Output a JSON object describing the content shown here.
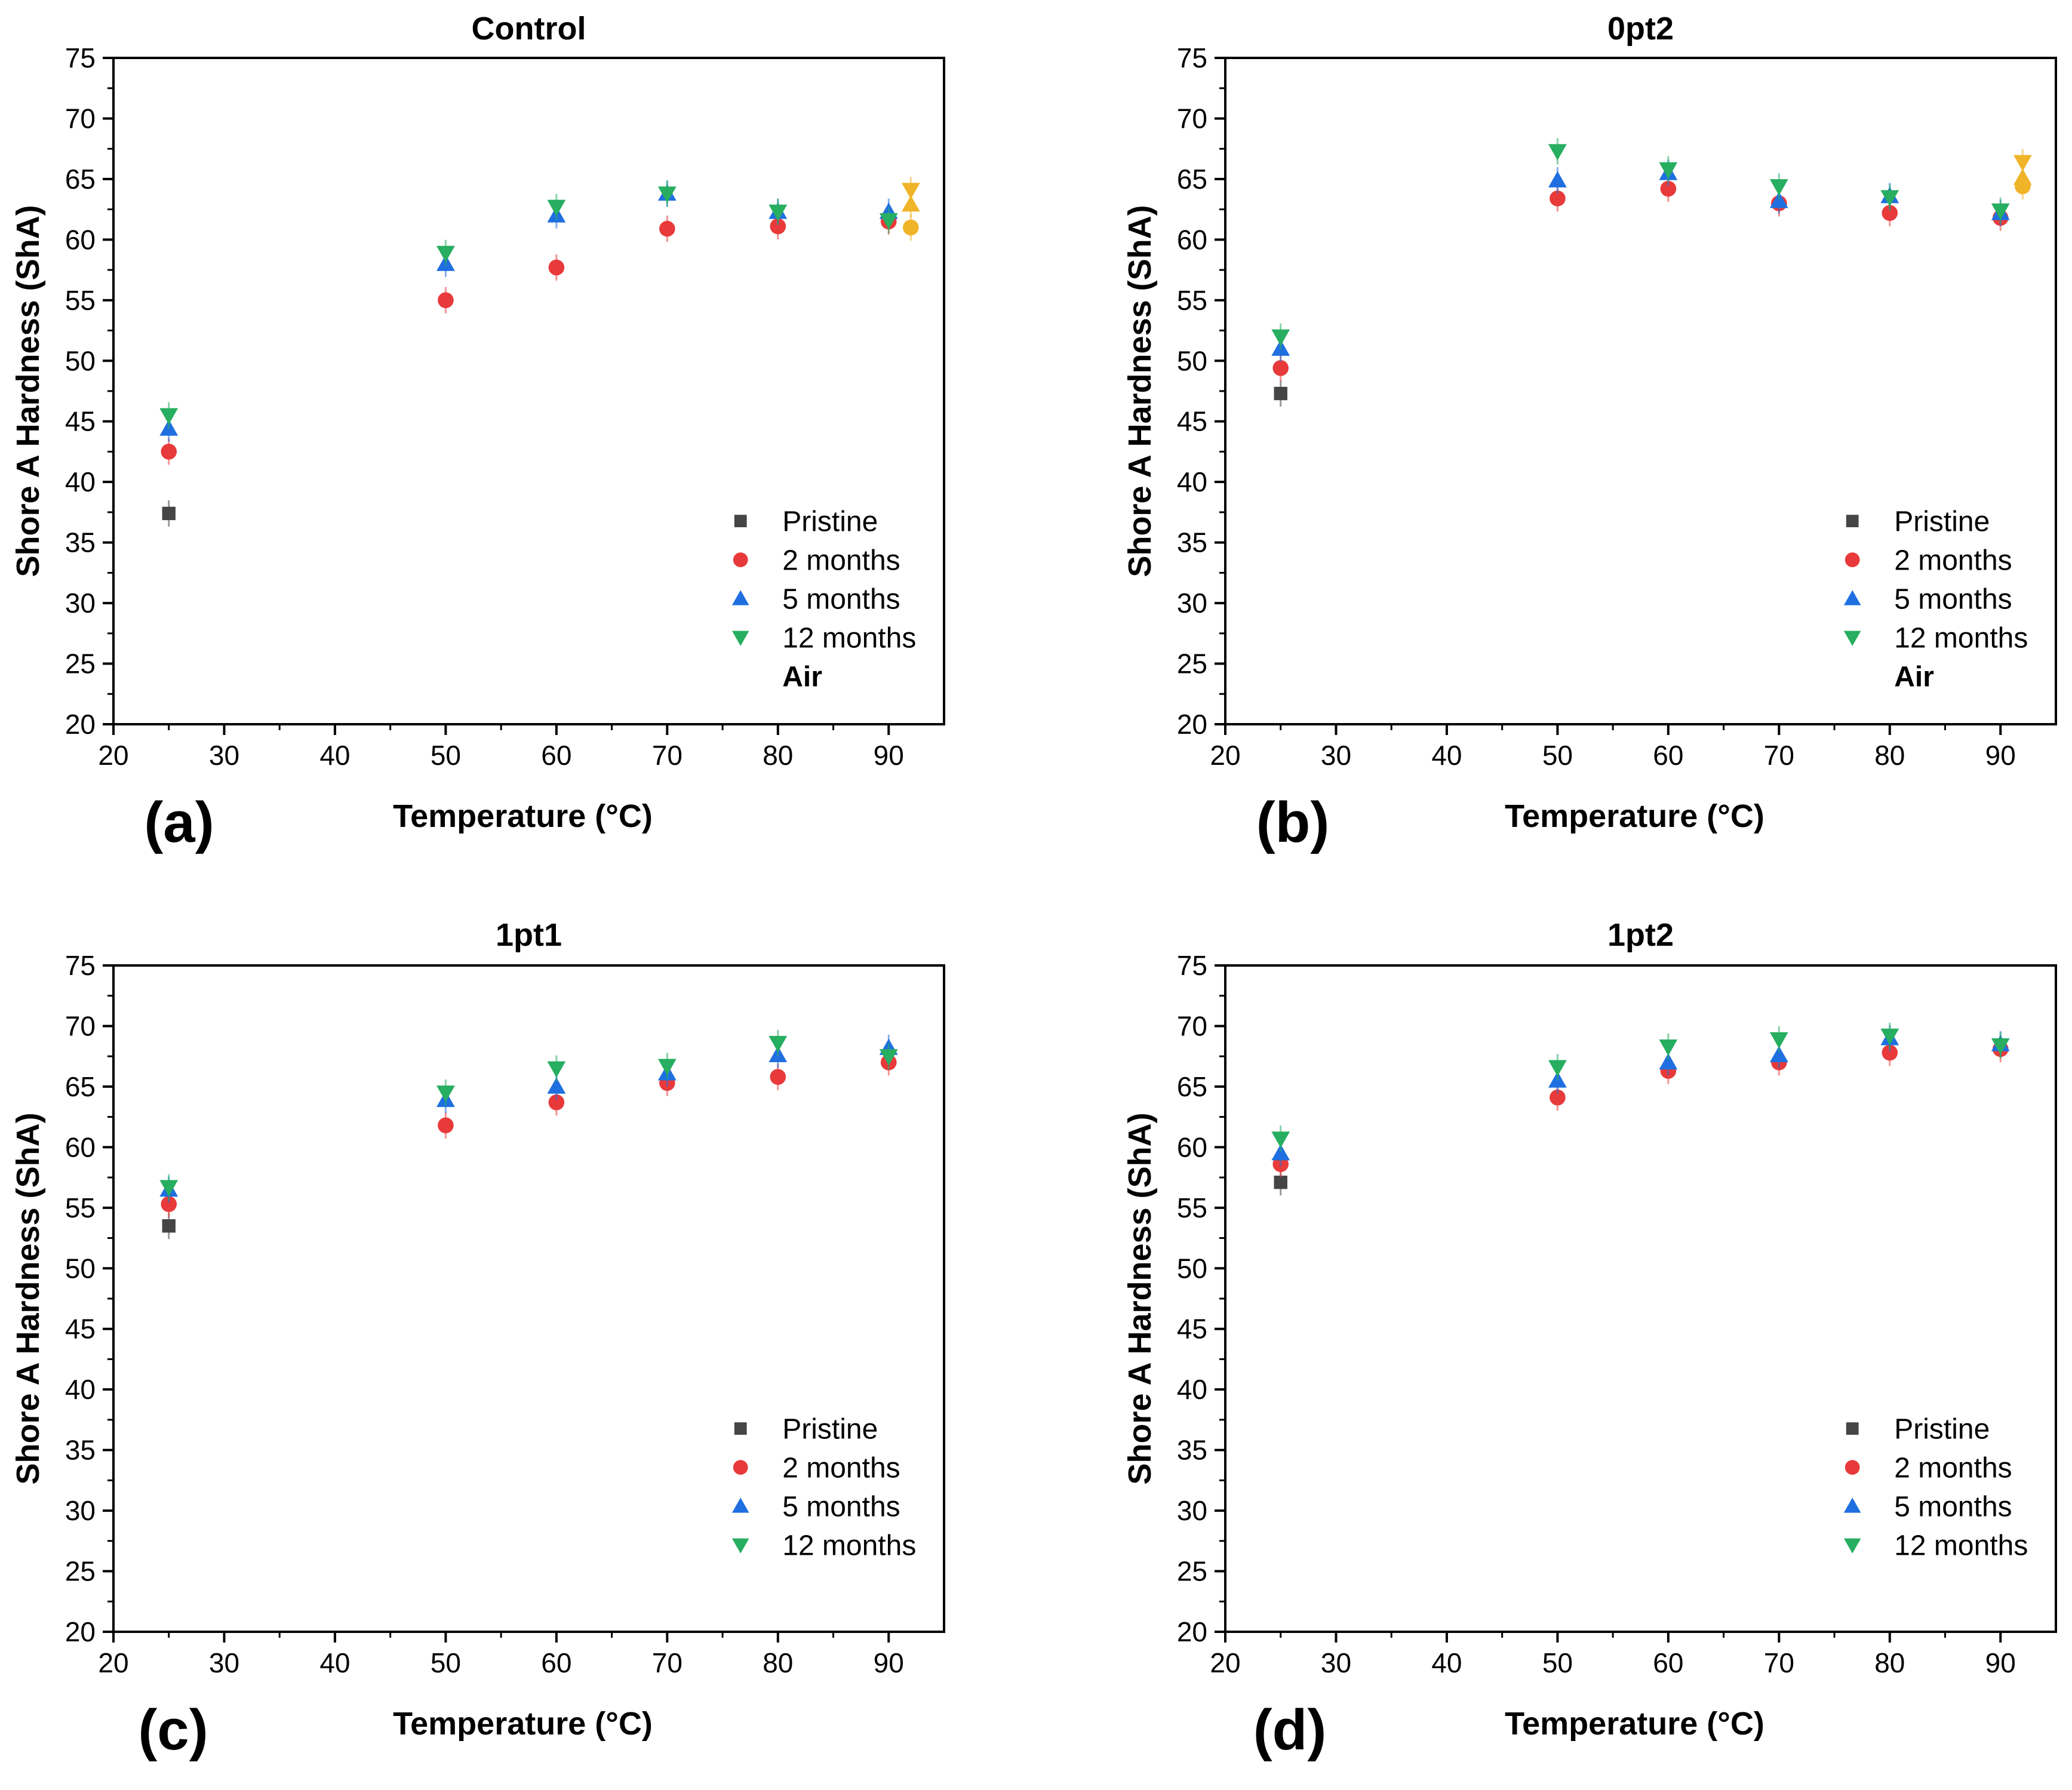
{
  "colors": {
    "Pristine": "#454545",
    "2 months": "#e83a3a",
    "5 months": "#1f6fe0",
    "12 months": "#27ae60",
    "Air": "#f0b429"
  },
  "chart_data": [
    {
      "type": "scatter",
      "panel_label": "(a)",
      "title": "Control",
      "xlabel": "Temperature (°C)",
      "ylabel": "Shore A Hardness (ShA)",
      "xlim": [
        20,
        95
      ],
      "ylim": [
        20,
        75
      ],
      "xticks": [
        20,
        30,
        40,
        50,
        60,
        70,
        80,
        90
      ],
      "yticks": [
        20,
        25,
        30,
        35,
        40,
        45,
        50,
        55,
        60,
        65,
        70,
        75
      ],
      "legend": [
        "Pristine",
        "2 months",
        "5 months",
        "12 months"
      ],
      "legend_extra": "Air",
      "legend_position": "bottom-right",
      "series": [
        {
          "name": "Pristine",
          "marker": "square",
          "points": [
            [
              25,
              37.4
            ]
          ]
        },
        {
          "name": "2 months",
          "marker": "circle",
          "points": [
            [
              25,
              42.5
            ],
            [
              50,
              55.0
            ],
            [
              60,
              57.7
            ],
            [
              70,
              60.9
            ],
            [
              80,
              61.1
            ],
            [
              90,
              61.5
            ]
          ]
        },
        {
          "name": "5 months",
          "marker": "triangle-up",
          "points": [
            [
              25,
              44.4
            ],
            [
              50,
              58.0
            ],
            [
              60,
              62.0
            ],
            [
              70,
              63.8
            ],
            [
              80,
              62.3
            ],
            [
              90,
              62.3
            ]
          ]
        },
        {
          "name": "12 months",
          "marker": "triangle-down",
          "points": [
            [
              25,
              45.5
            ],
            [
              50,
              58.9
            ],
            [
              60,
              62.7
            ],
            [
              70,
              63.8
            ],
            [
              80,
              62.3
            ],
            [
              90,
              61.6
            ]
          ]
        },
        {
          "name": "Air",
          "marker": "mixed",
          "points": [
            [
              92,
              64.1
            ],
            [
              92,
              62.9
            ],
            [
              92,
              61.0
            ]
          ]
        }
      ]
    },
    {
      "type": "scatter",
      "panel_label": "(b)",
      "title": "0pt2",
      "xlabel": "Temperature (°C)",
      "ylabel": "Shore A Hardness (ShA)",
      "xlim": [
        20,
        95
      ],
      "ylim": [
        20,
        75
      ],
      "xticks": [
        20,
        30,
        40,
        50,
        60,
        70,
        80,
        90
      ],
      "yticks": [
        20,
        25,
        30,
        35,
        40,
        45,
        50,
        55,
        60,
        65,
        70,
        75
      ],
      "legend": [
        "Pristine",
        "2 months",
        "5 months",
        "12 months"
      ],
      "legend_extra": "Air",
      "legend_position": "bottom-right",
      "series": [
        {
          "name": "Pristine",
          "marker": "square",
          "points": [
            [
              25,
              47.3
            ]
          ]
        },
        {
          "name": "2 months",
          "marker": "circle",
          "points": [
            [
              25,
              49.4
            ],
            [
              50,
              63.4
            ],
            [
              60,
              64.2
            ],
            [
              70,
              63.0
            ],
            [
              80,
              62.2
            ],
            [
              90,
              61.8
            ]
          ]
        },
        {
          "name": "5 months",
          "marker": "triangle-up",
          "points": [
            [
              25,
              51.0
            ],
            [
              50,
              64.9
            ],
            [
              60,
              65.5
            ],
            [
              70,
              63.2
            ],
            [
              80,
              63.6
            ],
            [
              90,
              62.2
            ]
          ]
        },
        {
          "name": "12 months",
          "marker": "triangle-down",
          "points": [
            [
              25,
              52.0
            ],
            [
              50,
              67.3
            ],
            [
              60,
              65.8
            ],
            [
              70,
              64.4
            ],
            [
              80,
              63.5
            ],
            [
              90,
              62.4
            ]
          ]
        },
        {
          "name": "Air",
          "marker": "mixed",
          "points": [
            [
              92,
              66.4
            ],
            [
              92,
              65.1
            ],
            [
              92,
              64.4
            ]
          ]
        }
      ]
    },
    {
      "type": "scatter",
      "panel_label": "(c)",
      "title": "1pt1",
      "xlabel": "Temperature (°C)",
      "ylabel": "Shore A Hardness (ShA)",
      "xlim": [
        20,
        95
      ],
      "ylim": [
        20,
        75
      ],
      "xticks": [
        20,
        30,
        40,
        50,
        60,
        70,
        80,
        90
      ],
      "yticks": [
        20,
        25,
        30,
        35,
        40,
        45,
        50,
        55,
        60,
        65,
        70,
        75
      ],
      "legend": [
        "Pristine",
        "2 months",
        "5 months",
        "12 months"
      ],
      "legend_position": "bottom-right",
      "series": [
        {
          "name": "Pristine",
          "marker": "square",
          "points": [
            [
              25,
              53.5
            ]
          ]
        },
        {
          "name": "2 months",
          "marker": "circle",
          "points": [
            [
              25,
              55.3
            ],
            [
              50,
              61.8
            ],
            [
              60,
              63.7
            ],
            [
              70,
              65.3
            ],
            [
              80,
              65.8
            ],
            [
              90,
              67.0
            ]
          ]
        },
        {
          "name": "5 months",
          "marker": "triangle-up",
          "points": [
            [
              25,
              56.5
            ],
            [
              50,
              63.9
            ],
            [
              60,
              65.0
            ],
            [
              70,
              66.1
            ],
            [
              80,
              67.6
            ],
            [
              90,
              68.2
            ]
          ]
        },
        {
          "name": "12 months",
          "marker": "triangle-down",
          "points": [
            [
              25,
              56.7
            ],
            [
              50,
              64.5
            ],
            [
              60,
              66.5
            ],
            [
              70,
              66.7
            ],
            [
              80,
              68.6
            ],
            [
              90,
              67.5
            ]
          ]
        }
      ]
    },
    {
      "type": "scatter",
      "panel_label": "(d)",
      "title": "1pt2",
      "xlabel": "Temperature (°C)",
      "ylabel": "Shore A Hardness (ShA)",
      "xlim": [
        20,
        95
      ],
      "ylim": [
        20,
        75
      ],
      "xticks": [
        20,
        30,
        40,
        50,
        60,
        70,
        80,
        90
      ],
      "yticks": [
        20,
        25,
        30,
        35,
        40,
        45,
        50,
        55,
        60,
        65,
        70,
        75
      ],
      "legend": [
        "Pristine",
        "2 months",
        "5 months",
        "12 months"
      ],
      "legend_position": "bottom-right",
      "series": [
        {
          "name": "Pristine",
          "marker": "square",
          "points": [
            [
              25,
              57.1
            ]
          ]
        },
        {
          "name": "2 months",
          "marker": "circle",
          "points": [
            [
              25,
              58.6
            ],
            [
              50,
              64.1
            ],
            [
              60,
              66.3
            ],
            [
              70,
              67.0
            ],
            [
              80,
              67.8
            ],
            [
              90,
              68.1
            ]
          ]
        },
        {
          "name": "5 months",
          "marker": "triangle-up",
          "points": [
            [
              25,
              59.5
            ],
            [
              50,
              65.5
            ],
            [
              60,
              67.0
            ],
            [
              70,
              67.6
            ],
            [
              80,
              69.0
            ],
            [
              90,
              68.5
            ]
          ]
        },
        {
          "name": "12 months",
          "marker": "triangle-down",
          "points": [
            [
              25,
              60.7
            ],
            [
              50,
              66.6
            ],
            [
              60,
              68.3
            ],
            [
              70,
              68.9
            ],
            [
              80,
              69.2
            ],
            [
              90,
              68.4
            ]
          ]
        }
      ]
    }
  ]
}
